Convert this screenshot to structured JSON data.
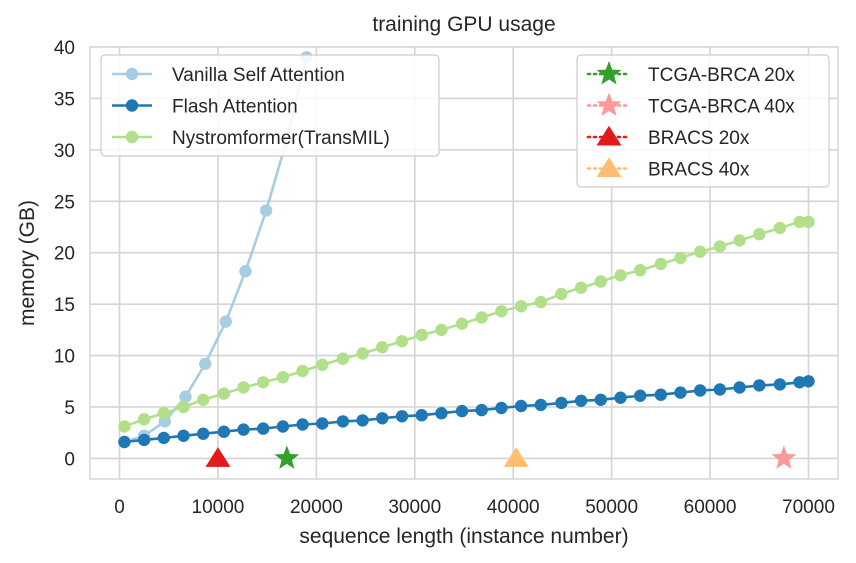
{
  "chart_data": {
    "type": "line",
    "title": "training GPU usage",
    "xlabel": "sequence length (instance number)",
    "ylabel": "memory (GB)",
    "xlim": [
      -3000,
      73000
    ],
    "ylim": [
      -2,
      40
    ],
    "xticks": [
      0,
      10000,
      20000,
      30000,
      40000,
      50000,
      60000,
      70000
    ],
    "xtick_labels": [
      "0",
      "10000",
      "20000",
      "30000",
      "40000",
      "50000",
      "60000",
      "70000"
    ],
    "yticks": [
      0,
      5,
      10,
      15,
      20,
      25,
      30,
      35,
      40
    ],
    "ytick_labels": [
      "0",
      "5",
      "10",
      "15",
      "20",
      "25",
      "30",
      "35",
      "40"
    ],
    "grid": true,
    "series": [
      {
        "name": "Vanilla Self Attention",
        "color": "#a6cee3",
        "marker": "circle",
        "x": [
          500,
          2500,
          4600,
          6700,
          8700,
          10800,
          12800,
          14900,
          17000,
          19000
        ],
        "y": [
          1.6,
          2.2,
          3.6,
          6.0,
          9.2,
          13.3,
          18.2,
          24.1,
          31.0,
          39.0
        ]
      },
      {
        "name": "Flash Attention",
        "color": "#1f78b4",
        "marker": "circle",
        "x": [
          500,
          2500,
          4500,
          6500,
          8500,
          10600,
          12600,
          14600,
          16600,
          18600,
          20600,
          22700,
          24700,
          26700,
          28700,
          30700,
          32700,
          34800,
          36800,
          38800,
          40800,
          42800,
          44900,
          46900,
          48900,
          50900,
          52900,
          55000,
          57000,
          59000,
          61000,
          63000,
          65000,
          67100,
          69100,
          70000
        ],
        "y": [
          1.6,
          1.8,
          2.0,
          2.2,
          2.4,
          2.6,
          2.8,
          2.9,
          3.1,
          3.3,
          3.4,
          3.6,
          3.7,
          3.9,
          4.1,
          4.2,
          4.4,
          4.6,
          4.7,
          4.9,
          5.1,
          5.2,
          5.4,
          5.6,
          5.7,
          5.9,
          6.1,
          6.2,
          6.4,
          6.6,
          6.7,
          6.9,
          7.1,
          7.2,
          7.4,
          7.5
        ]
      },
      {
        "name": "Nystromformer(TransMIL)",
        "color": "#b2df8a",
        "marker": "circle",
        "x": [
          500,
          2500,
          4500,
          6500,
          8500,
          10600,
          12600,
          14600,
          16600,
          18600,
          20600,
          22700,
          24700,
          26700,
          28700,
          30700,
          32700,
          34800,
          36800,
          38800,
          40800,
          42800,
          44900,
          46900,
          48900,
          50900,
          52900,
          55000,
          57000,
          59000,
          61000,
          63000,
          65000,
          67100,
          69100,
          70000
        ],
        "y": [
          3.1,
          3.8,
          4.4,
          5.0,
          5.7,
          6.3,
          6.9,
          7.4,
          7.9,
          8.5,
          9.1,
          9.7,
          10.2,
          10.8,
          11.4,
          12.0,
          12.5,
          13.1,
          13.7,
          14.3,
          14.8,
          15.2,
          16.0,
          16.6,
          17.2,
          17.8,
          18.3,
          18.9,
          19.5,
          20.1,
          20.6,
          21.2,
          21.8,
          22.4,
          23.0,
          23.0
        ]
      }
    ],
    "markers": [
      {
        "name": "TCGA-BRCA 20x",
        "color": "#33a02c",
        "marker": "star",
        "x": 17000,
        "y": 0
      },
      {
        "name": "TCGA-BRCA 40x",
        "color": "#fb9a99",
        "marker": "star",
        "x": 67500,
        "y": 0
      },
      {
        "name": "BRACS 20x",
        "color": "#e31a1c",
        "marker": "triangle",
        "x": 10000,
        "y": 0
      },
      {
        "name": "BRACS 40x",
        "color": "#fdbf6f",
        "marker": "triangle",
        "x": 40300,
        "y": 0
      }
    ],
    "legends": [
      "top-left",
      "top-right"
    ]
  }
}
